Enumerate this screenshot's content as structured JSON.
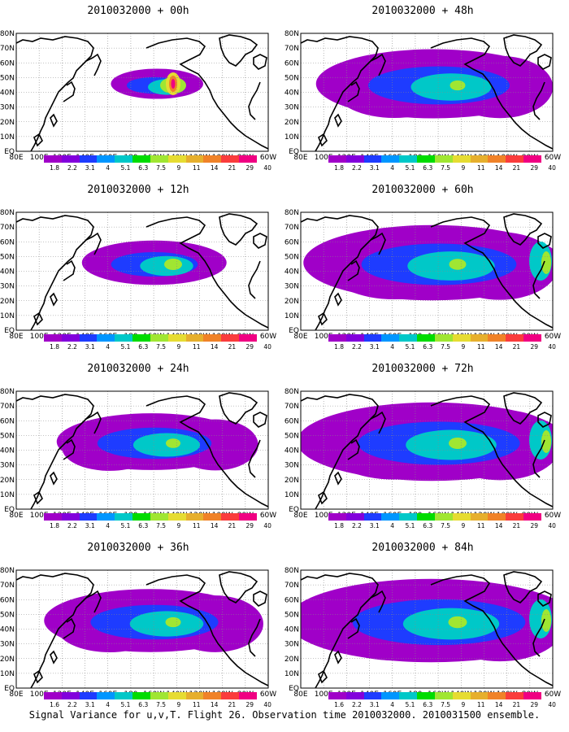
{
  "panels": [
    {
      "title": "2010032000 + 00h",
      "spread": 0.12,
      "hot": 1.0
    },
    {
      "title": "2010032000 + 12h",
      "spread": 0.35,
      "hot": 0.5
    },
    {
      "title": "2010032000 + 24h",
      "spread": 0.55,
      "hot": 0.3
    },
    {
      "title": "2010032000 + 36h",
      "spread": 0.65,
      "hot": 0.35
    },
    {
      "title": "2010032000 + 48h",
      "spread": 0.75,
      "hot": 0.35
    },
    {
      "title": "2010032000 + 60h",
      "spread": 0.85,
      "hot": 0.45
    },
    {
      "title": "2010032000 + 72h",
      "spread": 0.9,
      "hot": 0.5
    },
    {
      "title": "2010032000 + 84h",
      "spread": 0.98,
      "hot": 0.55
    }
  ],
  "lat_labels": [
    "80N",
    "70N",
    "60N",
    "50N",
    "40N",
    "30N",
    "20N",
    "10N",
    "EQ"
  ],
  "lon_labels": [
    "80E",
    "100E",
    "120E",
    "140E",
    "160E",
    "180",
    "160W",
    "140W",
    "120W",
    "100W",
    "80W",
    "60W"
  ],
  "colorbar": {
    "labels": [
      "1.8",
      "2.2",
      "3.1",
      "4",
      "5.1",
      "6.3",
      "7.5",
      "9",
      "11",
      "14",
      "21",
      "29",
      "40"
    ],
    "labels_last_row": [
      "1.6",
      "2.2",
      "3.1",
      "4",
      "5.1",
      "6.3",
      "7.5",
      "9",
      "11",
      "14",
      "21",
      "29",
      "40"
    ],
    "colors": [
      "#a000c8",
      "#8200dc",
      "#1e3cff",
      "#0096ff",
      "#00c8c8",
      "#00dc00",
      "#a0e632",
      "#e6dc32",
      "#e6af2d",
      "#f08228",
      "#fa3c3c",
      "#f00082"
    ]
  },
  "caption": "Signal Variance for u,v,T. Flight 26. Observation time 2010032000. 2010031500 ensemble."
}
